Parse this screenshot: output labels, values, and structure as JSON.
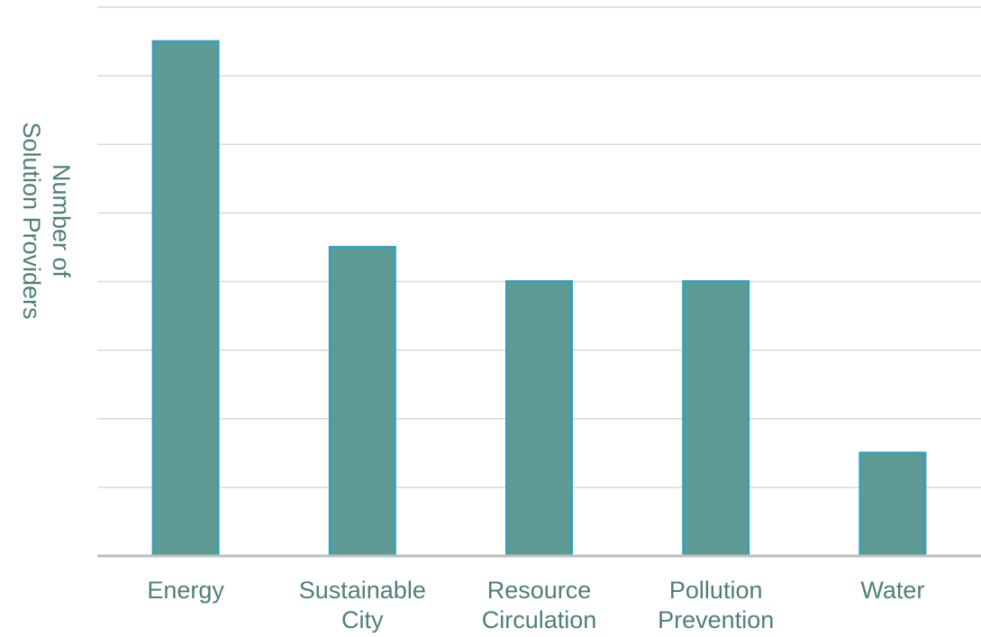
{
  "chart_data": {
    "type": "bar",
    "categories": [
      "Energy",
      "Sustainable City",
      "Resource Circulation",
      "Pollution Prevention",
      "Water"
    ],
    "category_lines": [
      [
        "Energy"
      ],
      [
        "Sustainable",
        "City"
      ],
      [
        "Resource",
        "Circulation"
      ],
      [
        "Pollution",
        "Prevention"
      ],
      [
        "Water"
      ]
    ],
    "values": [
      7.5,
      4.5,
      4,
      4,
      1.5
    ],
    "title": "",
    "xlabel": "",
    "ylabel": "Number of Solution Providers",
    "ylabel_lines": [
      "Number of",
      "Solution Providers"
    ],
    "ylim": [
      0,
      8
    ],
    "y_tick_labels_shown": false,
    "grid": true,
    "legend": "none",
    "colors": {
      "bar_fill": "#5f9b94",
      "bar_edge": "#3aa0b4",
      "grid": "#d9d9d9",
      "axis": "#bdbdbd",
      "text": "#4d7f7b"
    }
  }
}
